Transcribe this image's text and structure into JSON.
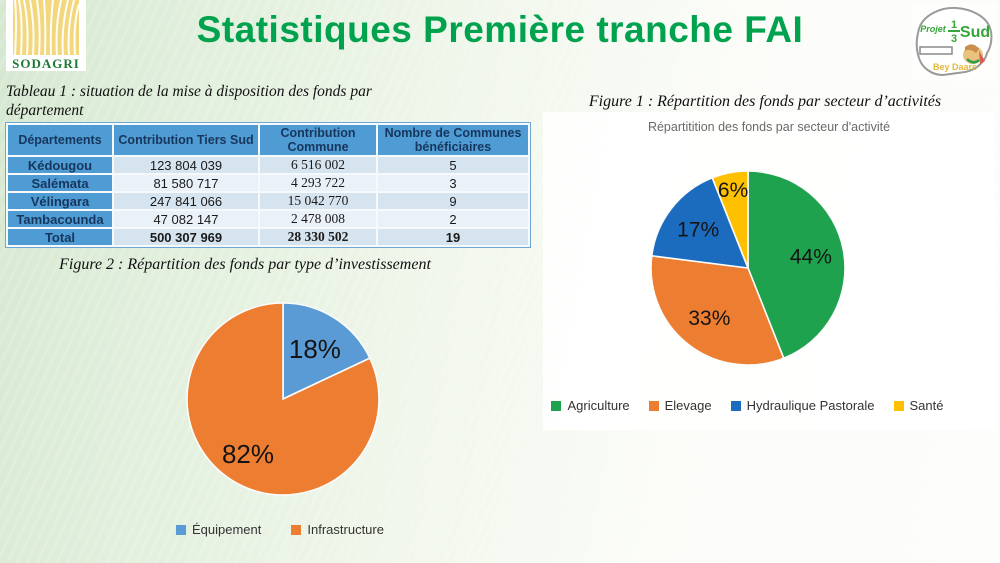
{
  "header": {
    "title": "Statistiques Première tranche FAI",
    "sodagri_logo_text": "SODAGRI",
    "projet_logo": {
      "word1": "Projet",
      "fraction_numerator": "1",
      "fraction_denominator": "3",
      "word2": "Sud",
      "subtitle": "Bey Daare"
    }
  },
  "colors": {
    "title_green": "#00a24e",
    "table_header_blue": "#4f9cd4",
    "row_light": "#d6e4f0",
    "row_lighter": "#eaf1f8",
    "pie_green": "#1ea24d",
    "pie_orange": "#ed7d31",
    "pie_dark_blue": "#1b6bbf",
    "pie_yellow": "#ffc000",
    "pie_light_blue": "#5b9bd5"
  },
  "left": {
    "table_caption": "Tableau 1 : situation de la mise à disposition des fonds par département",
    "figure2_caption": "Figure 2 : Répartition des fonds par type d’investissement"
  },
  "right": {
    "figure1_caption": "Figure 1 : Répartition des fonds par secteur d’activités"
  },
  "table": {
    "headers": [
      "Départements",
      "Contribution Tiers Sud",
      "Contribution Commune",
      "Nombre de Communes bénéficiaires"
    ],
    "rows": [
      {
        "dept": "Kédougou",
        "tiers": "123 804 039",
        "commune": "6 516 002",
        "nb": "5"
      },
      {
        "dept": "Salémata",
        "tiers": "81 580 717",
        "commune": "4 293 722",
        "nb": "3"
      },
      {
        "dept": "Vélingara",
        "tiers": "247 841 066",
        "commune": "15 042 770",
        "nb": "9"
      },
      {
        "dept": "Tambacounda",
        "tiers": "47 082 147",
        "commune": "2 478 008",
        "nb": "2"
      }
    ],
    "total": {
      "dept": "Total",
      "tiers": "500 307 969",
      "commune": "28 330 502",
      "nb": "19"
    }
  },
  "chart_data": [
    {
      "name": "repartition-secteur-activite",
      "type": "pie",
      "title": "Répartitition des fonds par secteur d'activité",
      "start_angle_deg": 0,
      "direction": "clockwise",
      "legend_position": "bottom",
      "slices": [
        {
          "label": "Agriculture",
          "value": 44,
          "percent_label": "44%",
          "color": "#1ea24d",
          "label_r": 0.66
        },
        {
          "label": "Elevage",
          "value": 33,
          "percent_label": "33%",
          "color": "#ed7d31",
          "label_r": 0.65
        },
        {
          "label": "Hydraulique Pastorale",
          "value": 17,
          "percent_label": "17%",
          "color": "#1b6bbf",
          "label_r": 0.65
        },
        {
          "label": "Santé",
          "value": 6,
          "percent_label": "6%",
          "color": "#ffc000",
          "label_r": 0.82
        }
      ]
    },
    {
      "name": "repartition-type-investissement",
      "type": "pie",
      "title": "",
      "start_angle_deg": 0,
      "direction": "clockwise",
      "legend_position": "bottom",
      "slices": [
        {
          "label": "Équipement",
          "value": 18,
          "percent_label": "18%",
          "color": "#5b9bd5",
          "label_r": 0.62
        },
        {
          "label": "Infrastructure",
          "value": 82,
          "percent_label": "82%",
          "color": "#ed7d31",
          "label_r": 0.68
        }
      ]
    }
  ]
}
